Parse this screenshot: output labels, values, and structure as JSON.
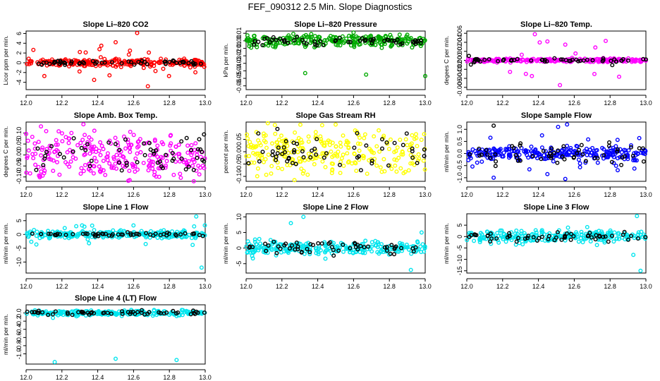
{
  "page": {
    "title": "FEF_090312  2.5 Min. Slope Diagnostics"
  },
  "chart_data": [
    {
      "type": "scatter",
      "title": "Slope Li–820 CO2",
      "ylabel": "Licor ppm per min.",
      "xlim": [
        12.0,
        13.0
      ],
      "ylim": [
        -5.5,
        6.5
      ],
      "xticks": [
        "12.0",
        "12.2",
        "12.4",
        "12.6",
        "12.8",
        "13.0"
      ],
      "yticks": [
        "-4",
        "-2",
        "0",
        "2",
        "4",
        "6"
      ],
      "series": [
        {
          "color": "#ff0000",
          "spread": 0.35,
          "extreme": 3.2,
          "outliers": [
            [
              12.62,
              6.1
            ],
            [
              12.42,
              3.5
            ],
            [
              12.5,
              4.2
            ],
            [
              12.68,
              -4.8
            ],
            [
              12.38,
              -3.5
            ],
            [
              12.58,
              2.5
            ],
            [
              12.3,
              2.2
            ]
          ]
        },
        {
          "color": "#000000",
          "spread": 0.2,
          "extreme": 0.4,
          "outliers": []
        }
      ]
    },
    {
      "type": "scatter",
      "title": "Slope Li–820 Pressure",
      "ylabel": "kPa per min.",
      "xlim": [
        12.0,
        13.0
      ],
      "ylim": [
        -0.065,
        0.013
      ],
      "xticks": [
        "12.0",
        "12.2",
        "12.4",
        "12.6",
        "12.8",
        "13.0"
      ],
      "yticks": [
        "-0.06",
        "-0.05",
        "-0.04",
        "-0.03",
        "-0.02",
        "-0.01",
        "0.00",
        "0.01"
      ],
      "series": [
        {
          "color": "#00aa00",
          "spread": 0.004,
          "extreme": 0.01,
          "outliers": [
            [
              12.33,
              -0.043
            ],
            [
              12.67,
              -0.045
            ],
            [
              13.0,
              -0.047
            ],
            [
              12.6,
              0.011
            ],
            [
              12.9,
              0.008
            ]
          ]
        },
        {
          "color": "#000000",
          "spread": 0.003,
          "extreme": 0.004,
          "outliers": []
        }
      ]
    },
    {
      "type": "scatter",
      "title": "Slope Li–820 Temp.",
      "ylabel": "degees C per min.",
      "xlim": [
        12.0,
        13.0
      ],
      "ylim": [
        -0.0065,
        0.0065
      ],
      "xticks": [
        "12.0",
        "12.2",
        "12.4",
        "12.6",
        "12.8",
        "13.0"
      ],
      "yticks": [
        "-0.006",
        "-0.004",
        "-0.002",
        "0.000",
        "0.002",
        "0.004",
        "0.006"
      ],
      "series": [
        {
          "color": "#ff00ff",
          "spread": 0.0002,
          "extreme": 0.0045,
          "outliers": [
            [
              12.38,
              0.0058
            ],
            [
              12.52,
              -0.0055
            ],
            [
              12.45,
              0.0042
            ],
            [
              12.55,
              0.0035
            ],
            [
              12.33,
              -0.003
            ]
          ]
        },
        {
          "color": "#000000",
          "spread": 0.0002,
          "extreme": 0.0015,
          "outliers": []
        }
      ]
    },
    {
      "type": "scatter",
      "title": "Slope Amb. Box Temp.",
      "ylabel": "degrees C per min.",
      "xlim": [
        12.0,
        13.0
      ],
      "ylim": [
        -0.12,
        0.15
      ],
      "xticks": [
        "12.0",
        "12.2",
        "12.4",
        "12.6",
        "12.8",
        "13.0"
      ],
      "yticks": [
        "-0.10",
        "-0.05",
        "0.00",
        "0.05",
        "0.10"
      ],
      "series": [
        {
          "color": "#ff00ff",
          "spread": 0.05,
          "extreme": 0.11,
          "outliers": [
            [
              12.32,
              0.14
            ]
          ]
        },
        {
          "color": "#000000",
          "spread": 0.04,
          "extreme": 0.07,
          "outliers": []
        }
      ]
    },
    {
      "type": "scatter",
      "title": "Slope Gas Stream RH",
      "ylabel": "percent per min.",
      "xlim": [
        12.0,
        13.0
      ],
      "ylim": [
        -0.12,
        0.12
      ],
      "xticks": [
        "12.0",
        "12.2",
        "12.4",
        "12.6",
        "12.8",
        "13.0"
      ],
      "yticks": [
        "-0.10",
        "-0.05",
        "0.00",
        "0.05"
      ],
      "series": [
        {
          "color": "#ffff00",
          "spread": 0.045,
          "extreme": 0.1,
          "outliers": [
            [
              12.27,
              -0.115
            ],
            [
              12.5,
              0.11
            ]
          ]
        },
        {
          "color": "#000000",
          "spread": 0.04,
          "extreme": 0.07,
          "outliers": []
        }
      ]
    },
    {
      "type": "scatter",
      "title": "Slope Sample Flow",
      "ylabel": "ml/min per min.",
      "xlim": [
        12.0,
        13.0
      ],
      "ylim": [
        -1.15,
        1.3
      ],
      "xticks": [
        "12.0",
        "12.2",
        "12.4",
        "12.6",
        "12.8",
        "13.0"
      ],
      "yticks": [
        "-1.0",
        "-0.5",
        "0.0",
        "0.5",
        "1.0"
      ],
      "series": [
        {
          "color": "#0000ff",
          "spread": 0.15,
          "extreme": 0.7,
          "outliers": [
            [
              12.51,
              1.1
            ],
            [
              12.56,
              1.2
            ],
            [
              12.55,
              -1.05
            ],
            [
              12.15,
              -1.0
            ],
            [
              12.45,
              -0.85
            ],
            [
              12.42,
              0.75
            ]
          ]
        },
        {
          "color": "#000000",
          "spread": 0.2,
          "extreme": 0.6,
          "outliers": [
            [
              12.15,
              1.15
            ]
          ]
        }
      ]
    },
    {
      "type": "scatter",
      "title": "Slope Line 1 Flow",
      "ylabel": "ml/min per min.",
      "xlim": [
        12.0,
        13.0
      ],
      "ylim": [
        -14,
        7.5
      ],
      "xticks": [
        "12.0",
        "12.2",
        "12.4",
        "12.6",
        "12.8",
        "13.0"
      ],
      "yticks": [
        "-10",
        "-5",
        "0",
        "5"
      ],
      "series": [
        {
          "color": "#00e5ee",
          "spread": 0.6,
          "extreme": 4,
          "outliers": [
            [
              12.95,
              6.5
            ],
            [
              12.98,
              -12
            ],
            [
              12.93,
              -3.8
            ],
            [
              12.28,
              3
            ]
          ]
        },
        {
          "color": "#000000",
          "spread": 0.3,
          "extreme": 0.8,
          "outliers": []
        }
      ]
    },
    {
      "type": "scatter",
      "title": "Slope Line 2 Flow",
      "ylabel": "ml/min per min.",
      "xlim": [
        12.0,
        13.0
      ],
      "ylim": [
        -8,
        11
      ],
      "xticks": [
        "12.0",
        "12.2",
        "12.4",
        "12.6",
        "12.8",
        "13.0"
      ],
      "yticks": [
        "-5",
        "0",
        "5",
        "10"
      ],
      "series": [
        {
          "color": "#00e5ee",
          "spread": 1.0,
          "extreme": 3.5,
          "outliers": [
            [
              12.32,
              10
            ],
            [
              12.25,
              8
            ],
            [
              12.92,
              -7
            ],
            [
              12.98,
              5
            ]
          ]
        },
        {
          "color": "#000000",
          "spread": 1.0,
          "extreme": 3.5,
          "outliers": []
        }
      ]
    },
    {
      "type": "scatter",
      "title": "Slope Line 3 Flow",
      "ylabel": "ml/min per min.",
      "xlim": [
        12.0,
        13.0
      ],
      "ylim": [
        -16,
        10
      ],
      "xticks": [
        "12.0",
        "12.2",
        "12.4",
        "12.6",
        "12.8",
        "13.0"
      ],
      "yticks": [
        "-15",
        "-10",
        "-5",
        "0",
        "5"
      ],
      "series": [
        {
          "color": "#00e5ee",
          "spread": 1.2,
          "extreme": 5,
          "outliers": [
            [
              12.97,
              -15
            ],
            [
              12.95,
              9
            ],
            [
              12.93,
              -8
            ]
          ]
        },
        {
          "color": "#000000",
          "spread": 0.9,
          "extreme": 2.5,
          "outliers": []
        }
      ]
    },
    {
      "type": "scatter",
      "title": "Slope Line 4 (LT) Flow",
      "ylabel": "ml/min per min.",
      "xlim": [
        12.0,
        13.0
      ],
      "ylim": [
        -1.25,
        0.2
      ],
      "xticks": [
        "12.0",
        "12.2",
        "12.4",
        "12.6",
        "12.8",
        "13.0"
      ],
      "yticks": [
        "-1.0",
        "-0.8",
        "-0.6",
        "-0.4",
        "-0.2",
        "0.0"
      ],
      "series": [
        {
          "color": "#00e5ee",
          "spread": 0.03,
          "extreme": 0.08,
          "outliers": [
            [
              12.16,
              -1.2
            ],
            [
              12.5,
              -1.12
            ],
            [
              12.84,
              -1.15
            ],
            [
              12.15,
              -0.12
            ]
          ]
        },
        {
          "color": "#000000",
          "spread": 0.025,
          "extreme": 0.06,
          "outliers": []
        }
      ]
    }
  ]
}
